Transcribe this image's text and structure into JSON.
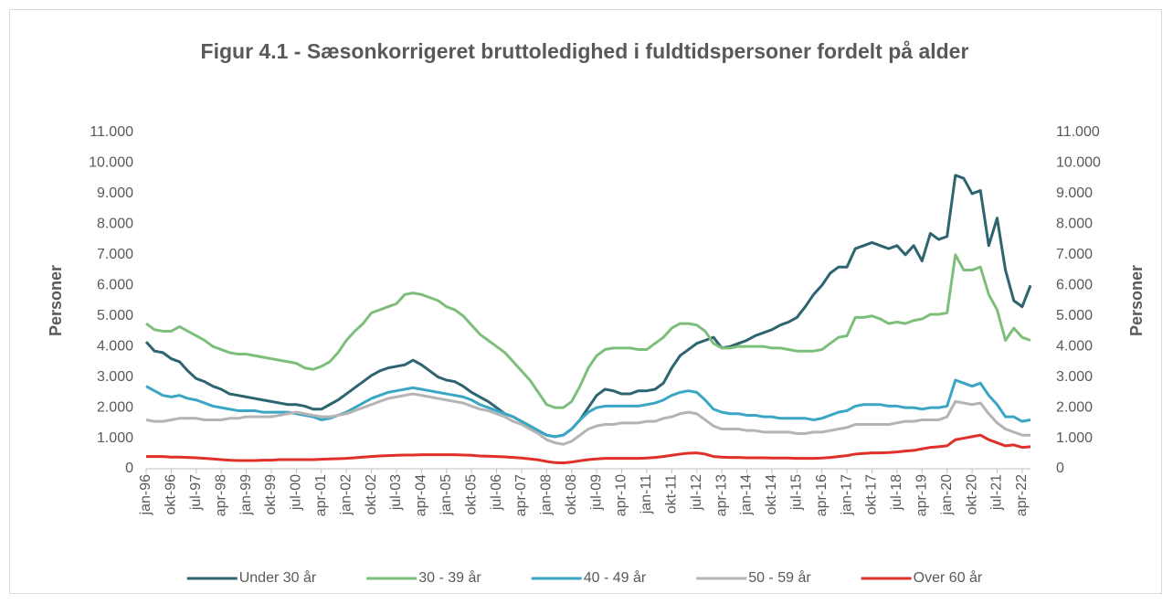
{
  "chart_data": {
    "type": "line",
    "title": "Figur 4.1 - Sæsonkorrigeret bruttoledighed i fuldtidspersoner fordelt på alder",
    "y_label": "Personer",
    "y2_label": "Personer",
    "categories": [
      "jan-96",
      null,
      null,
      "okt-96",
      null,
      null,
      "jul-97",
      null,
      null,
      "apr-98",
      null,
      null,
      "jan-99",
      null,
      null,
      "okt-99",
      null,
      null,
      "jul-00",
      null,
      null,
      "apr-01",
      null,
      null,
      "jan-02",
      null,
      null,
      "okt-02",
      null,
      null,
      "jul-03",
      null,
      null,
      "apr-04",
      null,
      null,
      "jan-05",
      null,
      null,
      "okt-05",
      null,
      null,
      "jul-06",
      null,
      null,
      "apr-07",
      null,
      null,
      "jan-08",
      null,
      null,
      "okt-08",
      null,
      null,
      "jul-09",
      null,
      null,
      "apr-10",
      null,
      null,
      "jan-11",
      null,
      null,
      "okt-11",
      null,
      null,
      "jul-12",
      null,
      null,
      "apr-13",
      null,
      null,
      "jan-14",
      null,
      null,
      "okt-14",
      null,
      null,
      "jul-15",
      null,
      null,
      "apr-16",
      null,
      null,
      "jan-17",
      null,
      null,
      "okt-17",
      null,
      null,
      "jul-18",
      null,
      null,
      "apr-19",
      null,
      null,
      "jan-20",
      null,
      null,
      "okt-20",
      null,
      null,
      "jul-21",
      null,
      null,
      "apr-22",
      null
    ],
    "series": [
      {
        "name": "Under 30 år",
        "color": "#2e6470",
        "values": [
          4150,
          3850,
          3800,
          3600,
          3500,
          3200,
          2950,
          2850,
          2700,
          2600,
          2450,
          2400,
          2350,
          2300,
          2250,
          2200,
          2150,
          2100,
          2100,
          2050,
          1950,
          1950,
          2100,
          2250,
          2450,
          2650,
          2850,
          3050,
          3200,
          3300,
          3350,
          3400,
          3550,
          3400,
          3200,
          3000,
          2900,
          2850,
          2700,
          2500,
          2350,
          2200,
          2000,
          1800,
          1700,
          1550,
          1400,
          1250,
          1100,
          1050,
          1100,
          1300,
          1600,
          2000,
          2400,
          2600,
          2550,
          2450,
          2450,
          2550,
          2550,
          2600,
          2800,
          3300,
          3700,
          3900,
          4100,
          4200,
          4300,
          3950,
          4000,
          4100,
          4200,
          4350,
          4450,
          4550,
          4700,
          4800,
          4950,
          5300,
          5700,
          6000,
          6400,
          6600,
          6600,
          7200,
          7300,
          7400,
          7300,
          7200,
          7300,
          7000,
          7300,
          6800,
          7700,
          7500,
          7600,
          9600,
          9500,
          9000,
          9100,
          7300,
          8200,
          6500,
          5500,
          5300,
          6000
        ]
      },
      {
        "name": "30 - 39 år",
        "color": "#7dbf7a",
        "values": [
          4750,
          4550,
          4500,
          4500,
          4650,
          4500,
          4350,
          4200,
          4000,
          3900,
          3800,
          3750,
          3750,
          3700,
          3650,
          3600,
          3550,
          3500,
          3450,
          3300,
          3250,
          3350,
          3500,
          3800,
          4200,
          4500,
          4750,
          5100,
          5200,
          5300,
          5400,
          5700,
          5750,
          5700,
          5600,
          5500,
          5300,
          5200,
          5000,
          4700,
          4400,
          4200,
          4000,
          3800,
          3500,
          3200,
          2900,
          2500,
          2100,
          2000,
          2000,
          2200,
          2700,
          3300,
          3700,
          3900,
          3950,
          3950,
          3950,
          3900,
          3900,
          4100,
          4300,
          4600,
          4750,
          4750,
          4700,
          4500,
          4100,
          3950,
          3950,
          4000,
          4000,
          4000,
          4000,
          3950,
          3950,
          3900,
          3850,
          3850,
          3850,
          3900,
          4100,
          4300,
          4350,
          4950,
          4950,
          5000,
          4900,
          4750,
          4800,
          4750,
          4850,
          4900,
          5050,
          5050,
          5100,
          7000,
          6500,
          6500,
          6600,
          5700,
          5200,
          4200,
          4600,
          4300,
          4200
        ]
      },
      {
        "name": "40 - 49 år",
        "color": "#3aa6c4",
        "values": [
          2700,
          2550,
          2400,
          2350,
          2400,
          2300,
          2250,
          2150,
          2050,
          2000,
          1950,
          1900,
          1900,
          1900,
          1850,
          1850,
          1850,
          1850,
          1800,
          1750,
          1700,
          1600,
          1650,
          1750,
          1850,
          2000,
          2150,
          2300,
          2400,
          2500,
          2550,
          2600,
          2650,
          2600,
          2550,
          2500,
          2450,
          2400,
          2350,
          2250,
          2100,
          2000,
          1900,
          1800,
          1700,
          1550,
          1400,
          1250,
          1100,
          1050,
          1100,
          1300,
          1600,
          1850,
          2000,
          2050,
          2050,
          2050,
          2050,
          2050,
          2100,
          2150,
          2250,
          2400,
          2500,
          2550,
          2500,
          2250,
          1950,
          1850,
          1800,
          1800,
          1750,
          1750,
          1700,
          1700,
          1650,
          1650,
          1650,
          1650,
          1600,
          1650,
          1750,
          1850,
          1900,
          2050,
          2100,
          2100,
          2100,
          2050,
          2050,
          2000,
          2000,
          1950,
          2000,
          2000,
          2050,
          2900,
          2800,
          2700,
          2800,
          2400,
          2100,
          1700,
          1700,
          1550,
          1600
        ]
      },
      {
        "name": "50 - 59 år",
        "color": "#b4b4b4",
        "values": [
          1600,
          1550,
          1550,
          1600,
          1650,
          1650,
          1650,
          1600,
          1600,
          1600,
          1650,
          1650,
          1700,
          1700,
          1700,
          1700,
          1750,
          1800,
          1850,
          1800,
          1750,
          1700,
          1700,
          1750,
          1800,
          1900,
          2000,
          2100,
          2200,
          2300,
          2350,
          2400,
          2450,
          2400,
          2350,
          2300,
          2250,
          2200,
          2150,
          2050,
          1950,
          1900,
          1800,
          1700,
          1550,
          1450,
          1300,
          1150,
          950,
          850,
          800,
          900,
          1100,
          1300,
          1400,
          1450,
          1450,
          1500,
          1500,
          1500,
          1550,
          1550,
          1650,
          1700,
          1800,
          1850,
          1800,
          1600,
          1400,
          1300,
          1300,
          1300,
          1250,
          1250,
          1200,
          1200,
          1200,
          1200,
          1150,
          1150,
          1200,
          1200,
          1250,
          1300,
          1350,
          1450,
          1450,
          1450,
          1450,
          1450,
          1500,
          1550,
          1550,
          1600,
          1600,
          1600,
          1700,
          2200,
          2150,
          2100,
          2150,
          1800,
          1500,
          1300,
          1200,
          1100,
          1100
        ]
      },
      {
        "name": "Over 60 år",
        "color": "#e0302a",
        "values": [
          400,
          400,
          400,
          380,
          380,
          370,
          360,
          340,
          320,
          300,
          280,
          270,
          270,
          270,
          280,
          280,
          300,
          300,
          300,
          300,
          300,
          310,
          320,
          330,
          340,
          360,
          380,
          400,
          420,
          430,
          440,
          450,
          450,
          460,
          460,
          460,
          460,
          460,
          450,
          440,
          420,
          410,
          400,
          390,
          370,
          350,
          320,
          290,
          240,
          200,
          190,
          220,
          260,
          300,
          320,
          340,
          340,
          340,
          340,
          340,
          350,
          370,
          400,
          440,
          480,
          510,
          520,
          480,
          400,
          380,
          370,
          370,
          360,
          360,
          360,
          350,
          350,
          350,
          340,
          340,
          340,
          350,
          370,
          400,
          430,
          480,
          500,
          520,
          520,
          530,
          550,
          580,
          600,
          650,
          700,
          720,
          750,
          950,
          1000,
          1050,
          1100,
          950,
          850,
          750,
          780,
          700,
          720
        ]
      }
    ],
    "ylim": [
      0,
      11000
    ],
    "yticks": [
      0,
      {
        "value": 1000,
        "label": "1.000"
      },
      {
        "value": 2000,
        "label": "2.000"
      },
      {
        "value": 3000,
        "label": "3.000"
      },
      {
        "value": 4000,
        "label": "4.000"
      },
      {
        "value": 5000,
        "label": "5.000"
      },
      {
        "value": 6000,
        "label": "6.000"
      },
      {
        "value": 7000,
        "label": "7.000"
      },
      {
        "value": 8000,
        "label": "8.000"
      },
      {
        "value": 9000,
        "label": "9.000"
      },
      {
        "value": 10000,
        "label": "10.000"
      },
      {
        "value": 11000,
        "label": "11.000"
      }
    ],
    "y2lim": [
      0,
      11000
    ],
    "y2ticks": [
      0,
      {
        "value": 1000,
        "label": "1.000"
      },
      {
        "value": 2000,
        "label": "2.000"
      },
      {
        "value": 3000,
        "label": "3.000"
      },
      {
        "value": 4000,
        "label": "4.000"
      },
      {
        "value": 5000,
        "label": "5.000"
      },
      {
        "value": 6000,
        "label": "6.000"
      },
      {
        "value": 7000,
        "label": "7.000"
      },
      {
        "value": 8000,
        "label": "8.000"
      },
      {
        "value": 9000,
        "label": "9.000"
      },
      {
        "value": 10000,
        "label": "10.000"
      },
      {
        "value": 11000,
        "label": "11.000"
      }
    ],
    "grid": false,
    "legend": "bottom"
  }
}
